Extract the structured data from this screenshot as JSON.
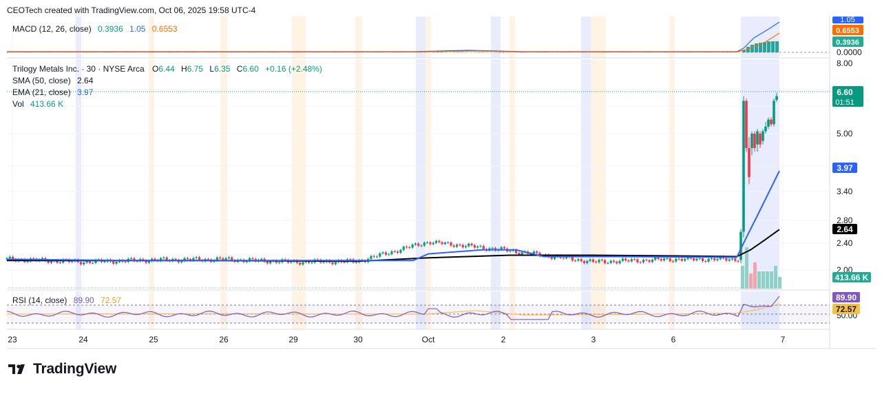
{
  "header": {
    "caption": "CEOTech created with TradingView.com, Oct 06, 2025 19:58 UTC-4"
  },
  "brand": {
    "name": "TradingView",
    "icon": "tradingview-logo-icon"
  },
  "colors": {
    "up": "#089981",
    "down": "#f23645",
    "ema": "#2962ff",
    "sma": "#000000",
    "macd_line": "#2962ff",
    "signal_line": "#ff6d00",
    "rsi_line": "#7e57c2",
    "rsi_ma": "#f5c046",
    "session_blue": "#e8ecfd",
    "session_orange": "#fff3e3"
  },
  "macd": {
    "legend_name": "MACD (12, 26, close)",
    "hist_value": "0.3936",
    "macd_value": "1.05",
    "signal_value": "0.6553",
    "badges": {
      "macd": "1.05",
      "signal": "0.6553",
      "hist": "0.3936"
    },
    "axis_ticks": [
      "0.0000"
    ]
  },
  "price": {
    "title": "Trilogy Metals Inc. · 30 · NYSE Arca",
    "o_label": "O",
    "o_value": "6.44",
    "h_label": "H",
    "h_value": "6.75",
    "l_label": "L",
    "l_value": "6.35",
    "c_label": "C",
    "c_value": "6.60",
    "change": "+0.16 (+2.48%)",
    "sma_name": "SMA (50, close)",
    "sma_value": "2.64",
    "ema_name": "EMA (21, close)",
    "ema_value": "3.97",
    "vol_name": "Vol",
    "vol_value": "413.66 K",
    "last_price_badge": "6.60",
    "countdown": "01:51",
    "ema_badge": "3.97",
    "sma_badge": "2.64",
    "vol_badge": "413.66 K"
  },
  "rsi": {
    "legend_name": "RSI (14, close)",
    "rsi_value": "89.90",
    "ma_value": "72.57",
    "badges": {
      "rsi": "89.90",
      "ma": "72.57"
    },
    "axis_ticks": [
      "50.00"
    ]
  },
  "chart_data": {
    "type": "candlestick",
    "symbol": "Trilogy Metals Inc.",
    "interval": "30",
    "exchange": "NYSE Arca",
    "x_tick_labels": [
      "23",
      "24",
      "25",
      "26",
      "29",
      "30",
      "Oct",
      "2",
      "3",
      "6",
      "7"
    ],
    "price_axis_ticks": [
      8.0,
      5.0,
      3.4,
      2.8,
      2.4,
      2.0
    ],
    "price_axis_labels": [
      "8.00",
      "5.00",
      "3.40",
      "2.80",
      "2.40",
      "2.00"
    ],
    "ylim": [
      1.85,
      8.0
    ],
    "grid": true,
    "series": [
      {
        "name": "price (close)",
        "points": [
          {
            "x": "23",
            "y": 2.16
          },
          {
            "x": "24",
            "y": 2.12
          },
          {
            "x": "25",
            "y": 2.15
          },
          {
            "x": "26",
            "y": 2.16
          },
          {
            "x": "29",
            "y": 2.12
          },
          {
            "x": "30",
            "y": 2.13
          },
          {
            "x": "Oct",
            "y": 2.42
          },
          {
            "x": "2",
            "y": 2.3
          },
          {
            "x": "3",
            "y": 2.12
          },
          {
            "x": "6",
            "y": 2.16
          },
          {
            "x": "7",
            "y": 6.6
          }
        ]
      },
      {
        "name": "EMA (21, close)",
        "last": 3.97
      },
      {
        "name": "SMA (50, close)",
        "last": 2.64
      }
    ],
    "last": {
      "open": 6.44,
      "high": 6.75,
      "low": 6.35,
      "close": 6.6,
      "change": 0.16,
      "change_pct": 2.48
    },
    "volume_last_k": 413.66,
    "macd": {
      "macd": 1.05,
      "signal": 0.6553,
      "histogram": 0.3936
    },
    "rsi": {
      "rsi": 89.9,
      "ma": 72.57,
      "level": 50.0
    }
  }
}
